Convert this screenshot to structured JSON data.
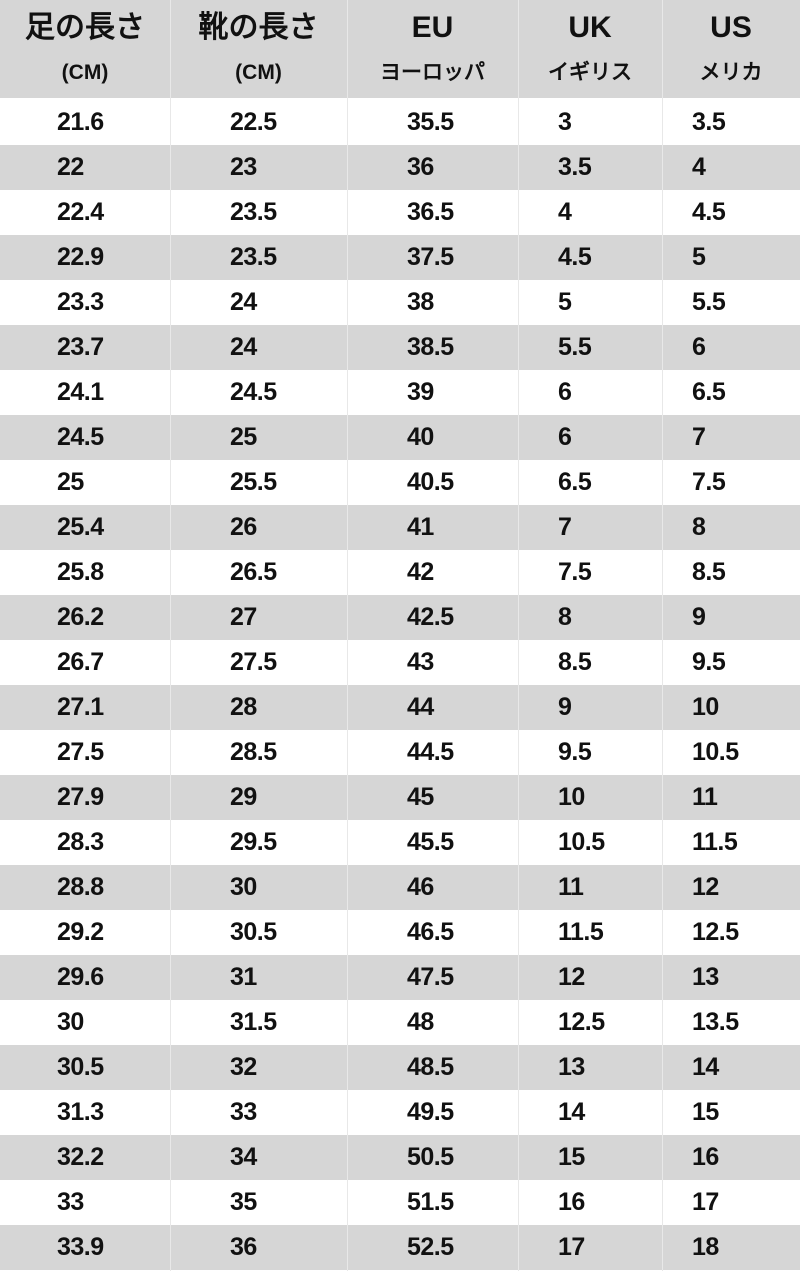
{
  "header": [
    {
      "title": "足の長さ",
      "sub": "(CM)"
    },
    {
      "title": "靴の長さ",
      "sub": "(CM)"
    },
    {
      "title": "EU",
      "sub": "ヨーロッパ"
    },
    {
      "title": "UK",
      "sub": "イギリス"
    },
    {
      "title": "US",
      "sub": "メリカ"
    }
  ],
  "rows": [
    [
      "21.6",
      "22.5",
      "35.5",
      "3",
      "3.5"
    ],
    [
      "22",
      "23",
      "36",
      "3.5",
      "4"
    ],
    [
      "22.4",
      "23.5",
      "36.5",
      "4",
      "4.5"
    ],
    [
      "22.9",
      "23.5",
      "37.5",
      "4.5",
      "5"
    ],
    [
      "23.3",
      "24",
      "38",
      "5",
      "5.5"
    ],
    [
      "23.7",
      "24",
      "38.5",
      "5.5",
      "6"
    ],
    [
      "24.1",
      "24.5",
      "39",
      "6",
      "6.5"
    ],
    [
      "24.5",
      "25",
      "40",
      "6",
      "7"
    ],
    [
      "25",
      "25.5",
      "40.5",
      "6.5",
      "7.5"
    ],
    [
      "25.4",
      "26",
      "41",
      "7",
      "8"
    ],
    [
      "25.8",
      "26.5",
      "42",
      "7.5",
      "8.5"
    ],
    [
      "26.2",
      "27",
      "42.5",
      "8",
      "9"
    ],
    [
      "26.7",
      "27.5",
      "43",
      "8.5",
      "9.5"
    ],
    [
      "27.1",
      "28",
      "44",
      "9",
      "10"
    ],
    [
      "27.5",
      "28.5",
      "44.5",
      "9.5",
      "10.5"
    ],
    [
      "27.9",
      "29",
      "45",
      "10",
      "11"
    ],
    [
      "28.3",
      "29.5",
      "45.5",
      "10.5",
      "11.5"
    ],
    [
      "28.8",
      "30",
      "46",
      "11",
      "12"
    ],
    [
      "29.2",
      "30.5",
      "46.5",
      "11.5",
      "12.5"
    ],
    [
      "29.6",
      "31",
      "47.5",
      "12",
      "13"
    ],
    [
      "30",
      "31.5",
      "48",
      "12.5",
      "13.5"
    ],
    [
      "30.5",
      "32",
      "48.5",
      "13",
      "14"
    ],
    [
      "31.3",
      "33",
      "49.5",
      "14",
      "15"
    ],
    [
      "32.2",
      "34",
      "50.5",
      "15",
      "16"
    ],
    [
      "33",
      "35",
      "51.5",
      "16",
      "17"
    ],
    [
      "33.9",
      "36",
      "52.5",
      "17",
      "18"
    ]
  ],
  "colors": {
    "stripe": "#d6d6d6",
    "background": "#ffffff",
    "text": "#111111"
  }
}
